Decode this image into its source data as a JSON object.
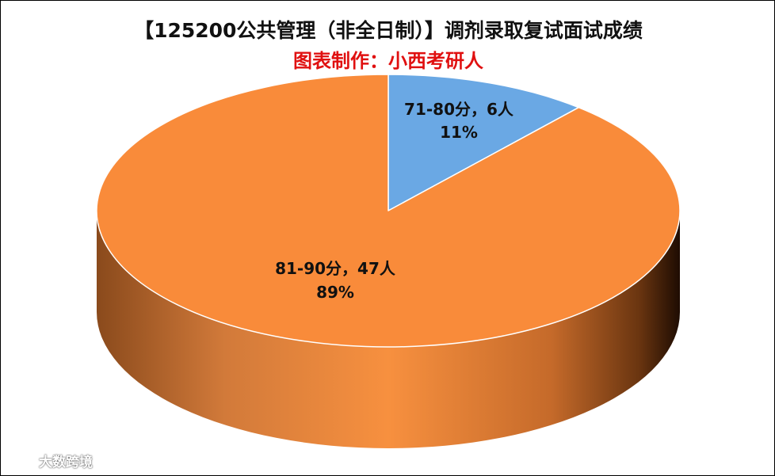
{
  "chart_data": {
    "type": "pie",
    "title": "【125200公共管理（非全日制）】调剂录取复试面试成绩",
    "subtitle": "图表制作：小西考研人",
    "slices": [
      {
        "label": "71-80分，6人",
        "value": 6,
        "percent": "11%",
        "color": "#6aa8e4"
      },
      {
        "label": "81-90分，47人",
        "value": 47,
        "percent": "89%",
        "color": "#f98b3a"
      }
    ]
  },
  "watermark": {
    "text": "大数跨境",
    "icon": "weibo-logo-icon"
  }
}
